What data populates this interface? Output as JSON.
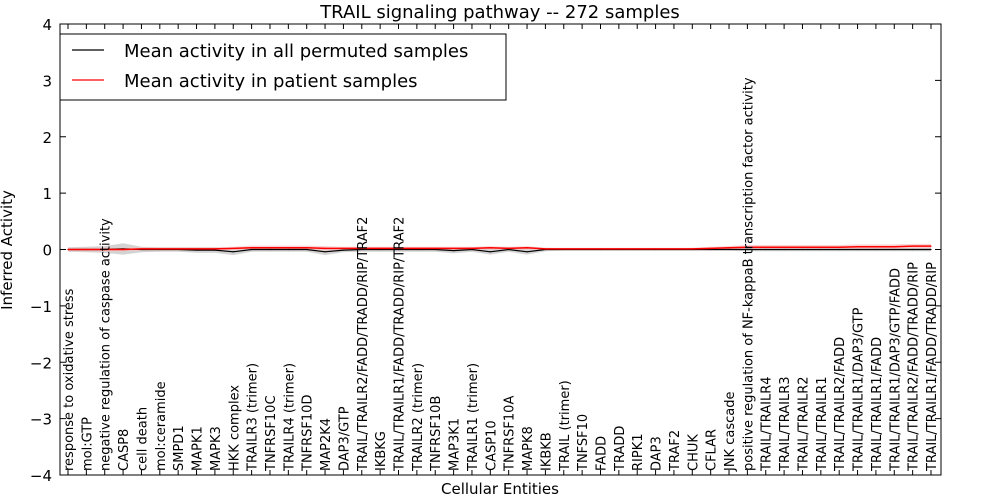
{
  "chart_data": {
    "type": "line",
    "title": "TRAIL signaling pathway -- 272 samples",
    "xlabel": "Cellular Entities",
    "ylabel": "Inferred Activity",
    "ylim": [
      -4,
      4
    ],
    "yticks": [
      "−4",
      "−3",
      "−2",
      "−1",
      "0",
      "1",
      "2",
      "3",
      "4"
    ],
    "legend_position": "top-left",
    "categories": [
      "response to oxidative stress",
      "mol:GTP",
      "negative regulation of caspase activity",
      "CASP8",
      "cell death",
      "mol:ceramide",
      "SMPD1",
      "MAPK1",
      "MAPK3",
      "HKK complex",
      "TRAILR3 (trimer)",
      "TNFRSF10C",
      "TRAILR4 (trimer)",
      "TNFRSF10D",
      "MAP2K4",
      "DAP3/GTP",
      "TRAIL/TRAILR2/FADD/TRADD/RIP/TRAF2",
      "IKBKG",
      "TRAIL/TRAILR1/FADD/TRADD/RIP/TRAF2",
      "TRAILR2 (trimer)",
      "TNFRSF10B",
      "MAP3K1",
      "TRAILR1 (trimer)",
      "CASP10",
      "TNFRSF10A",
      "MAPK8",
      "IKBKB",
      "TRAIL (trimer)",
      "TNFSF10",
      "FADD",
      "TRADD",
      "RIPK1",
      "DAP3",
      "TRAF2",
      "CHUK",
      "CFLAR",
      "JNK cascade",
      "positive regulation of NF-kappaB transcription factor activity",
      "TRAIL/TRAILR4",
      "TRAIL/TRAILR3",
      "TRAIL/TRAILR2",
      "TRAIL/TRAILR1",
      "TRAIL/TRAILR2/FADD",
      "TRAIL/TRAILR1/DAP3/GTP",
      "TRAIL/TRAILR1/FADD",
      "TRAIL/TRAILR1/DAP3/GTP/FADD",
      "TRAIL/TRAILR2/FADD/TRADD/RIP",
      "TRAIL/TRAILR1/FADD/TRADD/RIP"
    ],
    "series": [
      {
        "name": "Mean activity in all permuted samples",
        "color": "#000000",
        "band_color": "#c8c8c8",
        "values": [
          0,
          0,
          0,
          0.01,
          0,
          0,
          0,
          -0.01,
          -0.01,
          -0.04,
          0,
          0,
          0,
          0,
          -0.04,
          -0.01,
          0,
          0,
          0,
          0,
          0,
          -0.02,
          0,
          -0.04,
          0,
          -0.04,
          0,
          0,
          0,
          0,
          0,
          0,
          0,
          0,
          0,
          0,
          0,
          0,
          0,
          0,
          0,
          0,
          0,
          0,
          0,
          0,
          0,
          0
        ],
        "band_halfwidth": [
          0.04,
          0.05,
          0.06,
          0.1,
          0.05,
          0.04,
          0.04,
          0.05,
          0.05,
          0.06,
          0.04,
          0.04,
          0.04,
          0.04,
          0.06,
          0.04,
          0.04,
          0.04,
          0.04,
          0.04,
          0.04,
          0.05,
          0.04,
          0.05,
          0.04,
          0.05,
          0.03,
          0.02,
          0.02,
          0.02,
          0.02,
          0.02,
          0.02,
          0.02,
          0.02,
          0.02,
          0.02,
          0.03,
          0.03,
          0.03,
          0.03,
          0.03,
          0.03,
          0.03,
          0.03,
          0.03,
          0.03,
          0.03
        ]
      },
      {
        "name": "Mean activity in patient samples",
        "color": "#ff0000",
        "band_color": "#f7c2c2",
        "values": [
          0,
          0,
          0,
          0,
          0.01,
          0.01,
          0.01,
          0.01,
          0.01,
          0.02,
          0.03,
          0.03,
          0.03,
          0.03,
          0.02,
          0.02,
          0.02,
          0.02,
          0.02,
          0.02,
          0.02,
          0.02,
          0.02,
          0.03,
          0.02,
          0.03,
          0.01,
          0.01,
          0.01,
          0.01,
          0.01,
          0.01,
          0.01,
          0.01,
          0.01,
          0.02,
          0.03,
          0.04,
          0.04,
          0.04,
          0.04,
          0.04,
          0.04,
          0.05,
          0.05,
          0.05,
          0.06,
          0.06
        ],
        "band_halfwidth": [
          0.03,
          0.03,
          0.03,
          0.03,
          0.03,
          0.03,
          0.03,
          0.03,
          0.03,
          0.03,
          0.04,
          0.04,
          0.04,
          0.04,
          0.04,
          0.03,
          0.03,
          0.03,
          0.03,
          0.03,
          0.03,
          0.03,
          0.03,
          0.03,
          0.03,
          0.03,
          0.02,
          0.02,
          0.02,
          0.02,
          0.02,
          0.02,
          0.02,
          0.02,
          0.02,
          0.03,
          0.03,
          0.04,
          0.04,
          0.04,
          0.04,
          0.04,
          0.04,
          0.04,
          0.04,
          0.04,
          0.04,
          0.04
        ]
      }
    ]
  }
}
